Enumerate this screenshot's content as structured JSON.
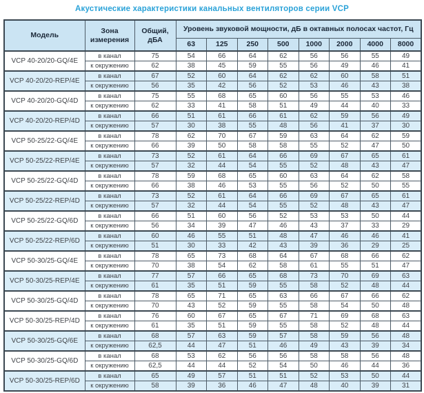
{
  "title": "Акустические характеристики канальных вентиляторов  серии VCP",
  "colors": {
    "title-blue": "#2aa2d8",
    "header-bg": "#cbe4f3",
    "shade-bg": "#d9edf8",
    "border-main": "#4c5a66",
    "border-heavy": "#3a4650",
    "header-text": "#1b2838",
    "body-text": "#3f4247"
  },
  "table": {
    "col_model": "Модель",
    "col_zone": "Зона измерения",
    "col_total": "Общий, дБА",
    "col_spl": "Уровень звуковой мощности, дБ в октавных полосах частот, Гц",
    "frequencies": [
      "63",
      "125",
      "250",
      "500",
      "1000",
      "2000",
      "4000",
      "8000"
    ],
    "zone_in_duct": "в канал",
    "zone_surround": "к окружению",
    "rows": [
      {
        "model": "VCP 40-20/20-GQ/4E",
        "shaded": false,
        "in_duct": {
          "total": "75",
          "levels": [
            54,
            66,
            64,
            62,
            56,
            56,
            55,
            49
          ]
        },
        "surround": {
          "total": "62",
          "levels": [
            38,
            45,
            59,
            55,
            56,
            49,
            46,
            41
          ]
        }
      },
      {
        "model": "VCP 40-20/20-REP/4E",
        "shaded": true,
        "in_duct": {
          "total": "67",
          "levels": [
            52,
            60,
            64,
            62,
            62,
            60,
            58,
            51
          ]
        },
        "surround": {
          "total": "56",
          "levels": [
            35,
            42,
            56,
            52,
            53,
            46,
            43,
            38
          ]
        }
      },
      {
        "model": "VCP 40-20/20-GQ/4D",
        "shaded": false,
        "in_duct": {
          "total": "75",
          "levels": [
            55,
            68,
            65,
            60,
            56,
            55,
            53,
            46
          ]
        },
        "surround": {
          "total": "62",
          "levels": [
            33,
            41,
            58,
            51,
            49,
            44,
            40,
            33
          ]
        }
      },
      {
        "model": "VCP 40-20/20-REP/4D",
        "shaded": true,
        "in_duct": {
          "total": "66",
          "levels": [
            51,
            61,
            66,
            61,
            62,
            59,
            56,
            49
          ]
        },
        "surround": {
          "total": "57",
          "levels": [
            30,
            38,
            55,
            48,
            56,
            41,
            37,
            30
          ]
        }
      },
      {
        "model": "VCP 50-25/22-GQ/4E",
        "shaded": false,
        "in_duct": {
          "total": "78",
          "levels": [
            62,
            70,
            67,
            59,
            63,
            64,
            62,
            59
          ]
        },
        "surround": {
          "total": "66",
          "levels": [
            39,
            50,
            58,
            58,
            55,
            52,
            47,
            50
          ]
        }
      },
      {
        "model": "VCP 50-25/22-REP/4E",
        "shaded": true,
        "in_duct": {
          "total": "73",
          "levels": [
            52,
            61,
            64,
            66,
            69,
            67,
            65,
            61
          ]
        },
        "surround": {
          "total": "57",
          "levels": [
            32,
            44,
            54,
            55,
            52,
            48,
            43,
            47
          ]
        }
      },
      {
        "model": "VCP 50-25/22-GQ/4D",
        "shaded": false,
        "in_duct": {
          "total": "78",
          "levels": [
            59,
            68,
            65,
            60,
            63,
            64,
            62,
            58
          ]
        },
        "surround": {
          "total": "66",
          "levels": [
            38,
            46,
            53,
            55,
            56,
            52,
            50,
            55
          ]
        }
      },
      {
        "model": "VCP 50-25/22-REP/4D",
        "shaded": true,
        "in_duct": {
          "total": "73",
          "levels": [
            52,
            61,
            64,
            66,
            69,
            67,
            65,
            61
          ]
        },
        "surround": {
          "total": "57",
          "levels": [
            32,
            44,
            54,
            55,
            52,
            48,
            43,
            47
          ]
        }
      },
      {
        "model": "VCP 50-25/22-GQ/6D",
        "shaded": false,
        "in_duct": {
          "total": "66",
          "levels": [
            51,
            60,
            56,
            52,
            53,
            53,
            50,
            44
          ]
        },
        "surround": {
          "total": "56",
          "levels": [
            34,
            39,
            47,
            46,
            43,
            37,
            33,
            29
          ]
        }
      },
      {
        "model": "VCP 50-25/22-REP/6D",
        "shaded": true,
        "in_duct": {
          "total": "60",
          "levels": [
            46,
            55,
            51,
            48,
            47,
            46,
            46,
            41
          ]
        },
        "surround": {
          "total": "51",
          "levels": [
            30,
            33,
            42,
            43,
            39,
            36,
            29,
            25
          ]
        }
      },
      {
        "model": "VCP 50-30/25-GQ/4E",
        "shaded": false,
        "in_duct": {
          "total": "78",
          "levels": [
            65,
            73,
            68,
            64,
            67,
            68,
            66,
            62
          ]
        },
        "surround": {
          "total": "70",
          "levels": [
            38,
            54,
            62,
            58,
            61,
            55,
            51,
            47
          ]
        }
      },
      {
        "model": "VCP 50-30/25-REP/4E",
        "shaded": true,
        "in_duct": {
          "total": "77",
          "levels": [
            57,
            66,
            65,
            68,
            73,
            70,
            69,
            63
          ]
        },
        "surround": {
          "total": "61",
          "levels": [
            35,
            51,
            59,
            55,
            58,
            52,
            48,
            44
          ]
        }
      },
      {
        "model": "VCP 50-30/25-GQ/4D",
        "shaded": false,
        "in_duct": {
          "total": "78",
          "levels": [
            65,
            71,
            65,
            63,
            66,
            67,
            66,
            62
          ]
        },
        "surround": {
          "total": "70",
          "levels": [
            43,
            52,
            59,
            55,
            58,
            54,
            50,
            48
          ]
        }
      },
      {
        "model": "VCP 50-30/25-REP/4D",
        "shaded": false,
        "in_duct": {
          "total": "76",
          "levels": [
            60,
            67,
            65,
            67,
            71,
            69,
            68,
            63
          ]
        },
        "surround": {
          "total": "61",
          "levels": [
            35,
            51,
            59,
            55,
            58,
            52,
            48,
            44
          ]
        }
      },
      {
        "model": "VCP 50-30/25-GQ/6E",
        "shaded": true,
        "in_duct": {
          "total": "68",
          "levels": [
            57,
            63,
            59,
            57,
            58,
            59,
            56,
            48
          ]
        },
        "surround": {
          "total": "62,5",
          "levels": [
            44,
            47,
            51,
            46,
            49,
            43,
            39,
            34
          ]
        }
      },
      {
        "model": "VCP 50-30/25-GQ/6D",
        "shaded": false,
        "in_duct": {
          "total": "68",
          "levels": [
            53,
            62,
            56,
            56,
            58,
            58,
            56,
            48
          ]
        },
        "surround": {
          "total": "62,5",
          "levels": [
            44,
            44,
            52,
            54,
            50,
            46,
            44,
            36
          ]
        }
      },
      {
        "model": "VCP 50-30/25-REP/6D",
        "shaded": true,
        "in_duct": {
          "total": "65",
          "levels": [
            49,
            57,
            51,
            51,
            52,
            53,
            50,
            44
          ]
        },
        "surround": {
          "total": "58",
          "levels": [
            39,
            36,
            46,
            47,
            48,
            40,
            39,
            31
          ]
        }
      }
    ]
  }
}
